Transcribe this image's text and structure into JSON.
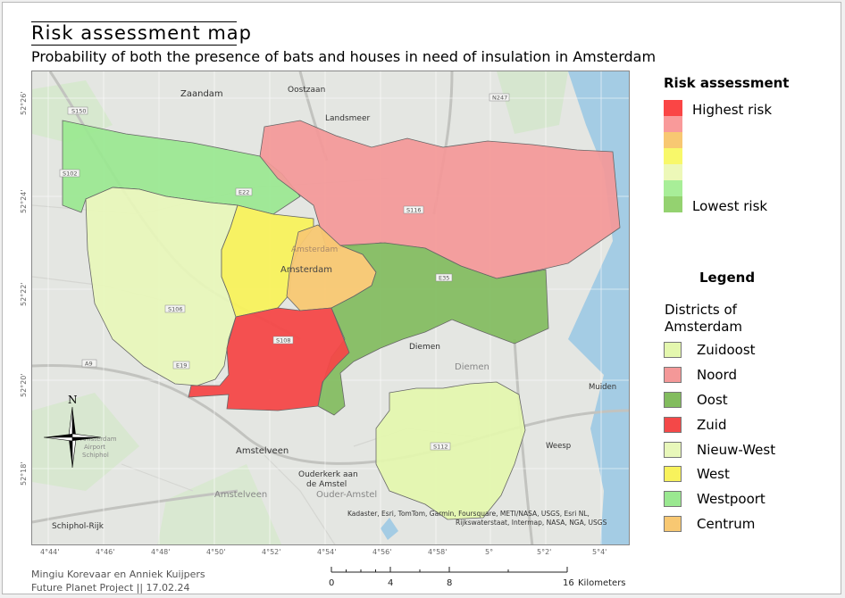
{
  "title": "Risk assessment map",
  "subtitle": "Probability of both the presence of bats and houses in need of insulation in Amsterdam",
  "risk_legend": {
    "heading": "Risk assessment",
    "high_label": "Highest risk",
    "low_label": "Lowest risk",
    "colors": [
      "#fa4545",
      "#f99a9a",
      "#f8c872",
      "#f8f86a",
      "#edf8b8",
      "#a8ee98",
      "#94d270"
    ]
  },
  "district_legend": {
    "heading": "Legend",
    "subheading_1": "Districts of",
    "subheading_2": "Amsterdam",
    "items": [
      {
        "name": "Zuidoost",
        "color": "#e4f7ae"
      },
      {
        "name": "Noord",
        "color": "#f49898"
      },
      {
        "name": "Oost",
        "color": "#82bc5e"
      },
      {
        "name": "Zuid",
        "color": "#f44848"
      },
      {
        "name": "Nieuw-West",
        "color": "#e8f7ba"
      },
      {
        "name": "West",
        "color": "#f8f25c"
      },
      {
        "name": "Westpoort",
        "color": "#9ae890"
      },
      {
        "name": "Centrum",
        "color": "#f8c872"
      }
    ]
  },
  "map": {
    "places": {
      "zaandam": "Zaandam",
      "oostzaan": "Oostzaan",
      "landsmeer": "Landsmeer",
      "amsterdam": "Amsterdam",
      "amsterdam_faint": "Amsterdam",
      "diemen": "Diemen",
      "diemen_faint": "Diemen",
      "muiden": "Muiden",
      "weesp": "Weesp",
      "amstelveen": "Amstelveen",
      "amstelveen_faint": "Amstelveen",
      "ouderkerk_1": "Ouderkerk aan",
      "ouderkerk_2": "de Amstel",
      "ouder_amstel": "Ouder-Amstel",
      "schiphol_rijk": "Schiphol-Rijk",
      "airport_1": "Amsterdam",
      "airport_2": "Airport",
      "airport_3": "Schiphol"
    },
    "roads": {
      "s150": "S150",
      "n247": "N247",
      "s102": "S102",
      "e22": "E22",
      "s116": "S116",
      "s106": "S106",
      "s108": "S108",
      "e35": "E35",
      "a9": "A9",
      "e19": "E19",
      "s112": "S112"
    },
    "attribution_1": "Kadaster, Esri, TomTom, Garmin, Foursquare, METI/NASA, USGS, Esri NL,",
    "attribution_2": "Rijkswaterstaat, Intermap, NASA, NGA, USGS",
    "north_label": "N",
    "lon_ticks": [
      "4°44'",
      "4°46'",
      "4°48'",
      "4°50'",
      "4°52'",
      "4°54'",
      "4°56'",
      "4°58'",
      "5°",
      "5°2'",
      "5°4'"
    ],
    "lat_ticks": [
      "52°26'",
      "52°24'",
      "52°22'",
      "52°20'",
      "52°18'"
    ]
  },
  "scale_bar": {
    "ticks": [
      "0",
      "4",
      "8",
      "16"
    ],
    "unit": "Kilometers"
  },
  "credits": {
    "authors": "Mingiu Korevaar en Anniek Kuijpers",
    "project": "Future Planet Project || 17.02.24"
  }
}
